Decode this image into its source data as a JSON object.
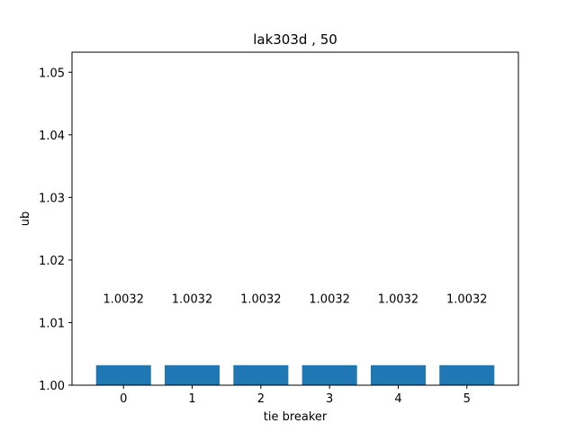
{
  "chart_data": {
    "type": "bar",
    "title": "lak303d , 50",
    "xlabel": "tie breaker",
    "ylabel": "ub",
    "categories": [
      "0",
      "1",
      "2",
      "3",
      "4",
      "5"
    ],
    "values": [
      1.0032,
      1.0032,
      1.0032,
      1.0032,
      1.0032,
      1.0032
    ],
    "data_labels": [
      "1.0032",
      "1.0032",
      "1.0032",
      "1.0032",
      "1.0032",
      "1.0032"
    ],
    "label_y": 1.0139,
    "xlim": [
      -0.75,
      5.75
    ],
    "ylim": [
      1.0,
      1.0532
    ],
    "yticks": [
      1.0,
      1.01,
      1.02,
      1.03,
      1.04,
      1.05
    ],
    "ytick_labels": [
      "1.00",
      "1.01",
      "1.02",
      "1.03",
      "1.04",
      "1.05"
    ],
    "bar_width": 0.8,
    "grid": false,
    "legend": "none",
    "bar_color": "#1f77b4"
  }
}
